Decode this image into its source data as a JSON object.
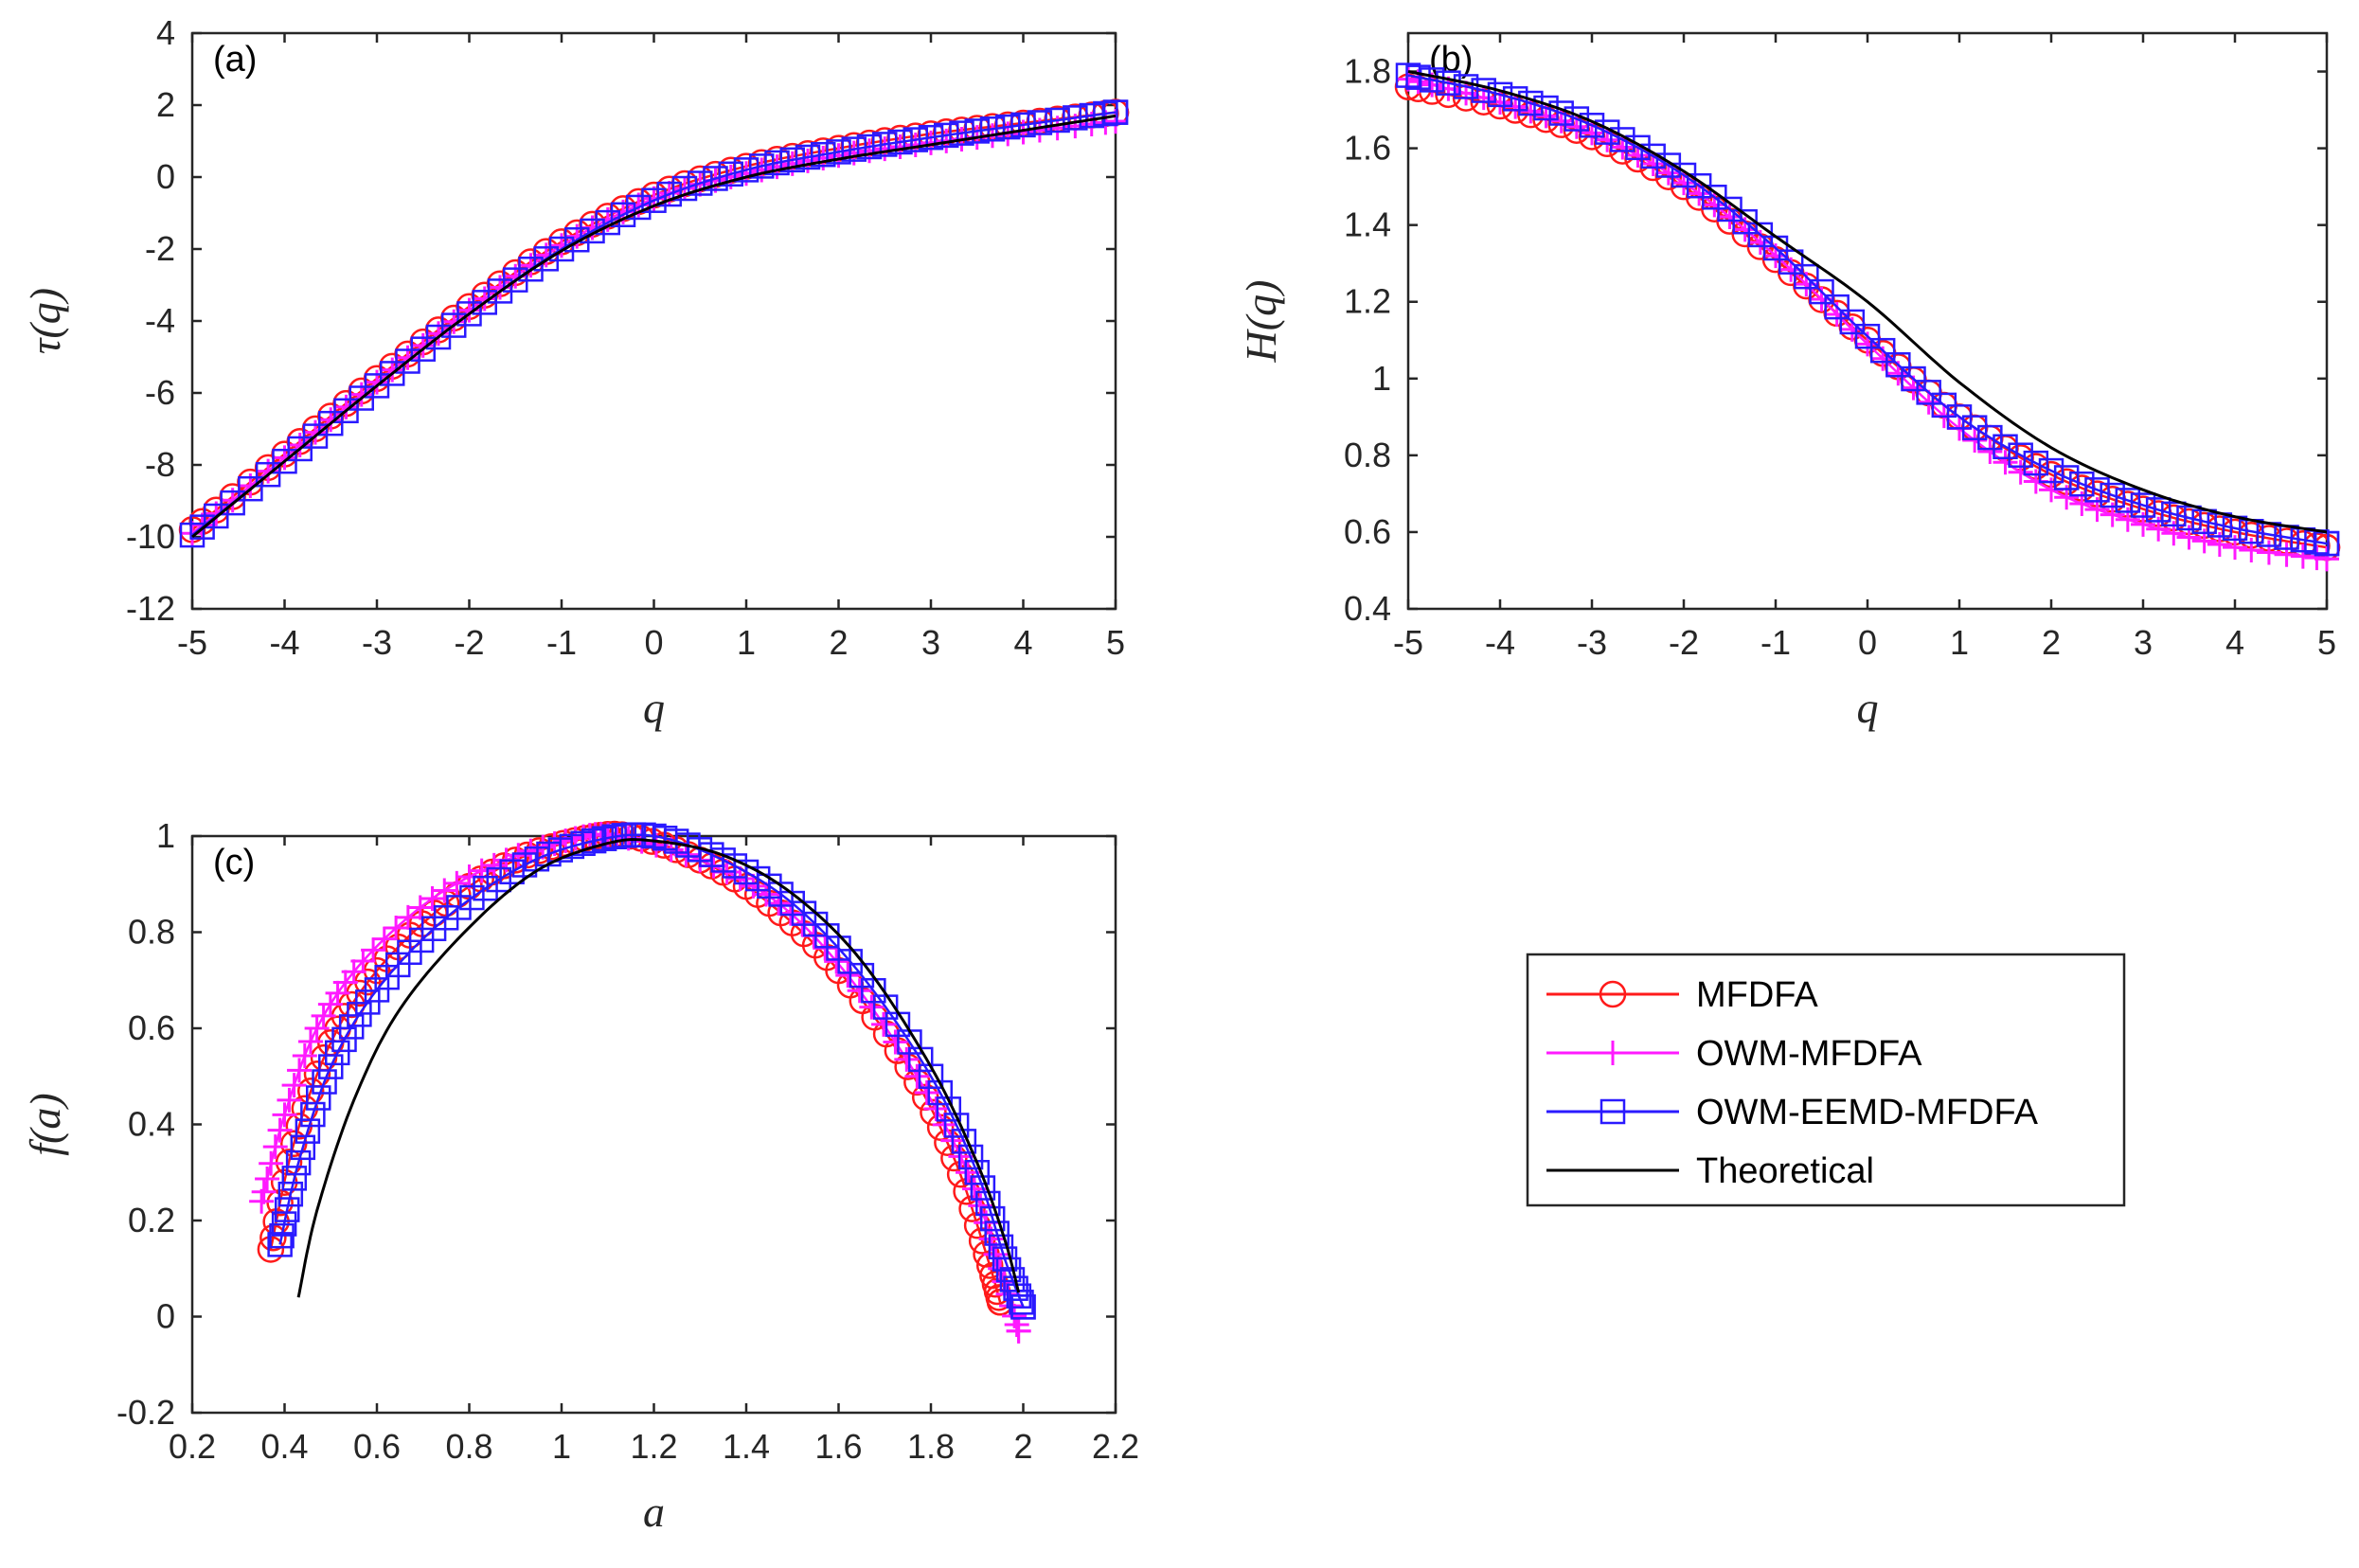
{
  "chart_data": [
    {
      "type": "line",
      "panel_label": "(a)",
      "xlabel": "q",
      "ylabel": "τ(q)",
      "xlim": [
        -5,
        5
      ],
      "ylim": [
        -12,
        4
      ],
      "xticks": [
        -5,
        -4,
        -3,
        -2,
        -1,
        0,
        1,
        2,
        3,
        4,
        5
      ],
      "yticks": [
        -12,
        -10,
        -8,
        -6,
        -4,
        -2,
        0,
        2,
        4
      ],
      "xtick_labels": [
        "-5",
        "-4",
        "-3",
        "-2",
        "-1",
        "0",
        "1",
        "2",
        "3",
        "4",
        "5"
      ],
      "ytick_labels": [
        "-12",
        "-10",
        "-8",
        "-6",
        "-4",
        "-2",
        "0",
        "2",
        "4"
      ],
      "series": [
        {
          "name": "MFDFA",
          "x": [
            -5,
            -4,
            -3,
            -2,
            -1,
            0,
            1,
            2,
            3,
            4,
            5
          ],
          "y": [
            -9.8,
            -7.7,
            -5.6,
            -3.6,
            -1.8,
            -0.5,
            0.3,
            0.8,
            1.2,
            1.5,
            1.8
          ]
        },
        {
          "name": "OWM-MFDFA",
          "x": [
            -5,
            -4,
            -3,
            -2,
            -1,
            0,
            1,
            2,
            3,
            4,
            5
          ],
          "y": [
            -9.9,
            -7.8,
            -5.7,
            -3.7,
            -1.9,
            -0.6,
            0.1,
            0.6,
            0.95,
            1.25,
            1.55
          ]
        },
        {
          "name": "OWM-EEMD-MFDFA",
          "x": [
            -5,
            -4,
            -3,
            -2,
            -1,
            0,
            1,
            2,
            3,
            4,
            5
          ],
          "y": [
            -9.95,
            -7.9,
            -5.8,
            -3.8,
            -2.0,
            -0.65,
            0.2,
            0.7,
            1.1,
            1.45,
            1.8
          ]
        },
        {
          "name": "Theoretical",
          "x": [
            -5,
            -4,
            -3,
            -2,
            -1,
            0,
            1,
            2,
            3,
            4,
            5
          ],
          "y": [
            -10.0,
            -7.9,
            -5.8,
            -3.8,
            -2.05,
            -0.8,
            0.0,
            0.5,
            0.9,
            1.3,
            1.7
          ]
        }
      ]
    },
    {
      "type": "line",
      "panel_label": "(b)",
      "xlabel": "q",
      "ylabel": "H(q)",
      "xlim": [
        -5,
        5
      ],
      "ylim": [
        0.4,
        1.9
      ],
      "xticks": [
        -5,
        -4,
        -3,
        -2,
        -1,
        0,
        1,
        2,
        3,
        4,
        5
      ],
      "yticks": [
        0.4,
        0.6,
        0.8,
        1.0,
        1.2,
        1.4,
        1.6,
        1.8
      ],
      "xtick_labels": [
        "-5",
        "-4",
        "-3",
        "-2",
        "-1",
        "0",
        "1",
        "2",
        "3",
        "4",
        "5"
      ],
      "ytick_labels": [
        "0.4",
        "0.6",
        "0.8",
        "1",
        "1.2",
        "1.4",
        "1.6",
        "1.8"
      ],
      "series": [
        {
          "name": "MFDFA",
          "x": [
            -5,
            -4,
            -3,
            -2,
            -1,
            0,
            1,
            2,
            3,
            4,
            5
          ],
          "y": [
            1.76,
            1.71,
            1.63,
            1.5,
            1.31,
            1.1,
            0.9,
            0.75,
            0.66,
            0.6,
            0.56
          ]
        },
        {
          "name": "OWM-MFDFA",
          "x": [
            -5,
            -4,
            -3,
            -2,
            -1,
            0,
            1,
            2,
            3,
            4,
            5
          ],
          "y": [
            1.78,
            1.72,
            1.64,
            1.51,
            1.32,
            1.09,
            0.87,
            0.71,
            0.62,
            0.56,
            0.53
          ]
        },
        {
          "name": "OWM-EEMD-MFDFA",
          "x": [
            -5,
            -4,
            -3,
            -2,
            -1,
            0,
            1,
            2,
            3,
            4,
            5
          ],
          "y": [
            1.79,
            1.74,
            1.66,
            1.53,
            1.34,
            1.11,
            0.9,
            0.76,
            0.67,
            0.61,
            0.57
          ]
        },
        {
          "name": "Theoretical",
          "x": [
            -5,
            -4,
            -3,
            -2,
            -1,
            0,
            1,
            2,
            3,
            4,
            5
          ],
          "y": [
            1.8,
            1.75,
            1.67,
            1.54,
            1.37,
            1.2,
            0.99,
            0.82,
            0.71,
            0.64,
            0.6
          ]
        }
      ]
    },
    {
      "type": "line",
      "panel_label": "(c)",
      "xlabel": "a",
      "ylabel": "f(a)",
      "xlim": [
        0.2,
        2.2
      ],
      "ylim": [
        -0.2,
        1.0
      ],
      "xticks": [
        0.2,
        0.4,
        0.6,
        0.8,
        1.0,
        1.2,
        1.4,
        1.6,
        1.8,
        2.0,
        2.2
      ],
      "yticks": [
        -0.2,
        0,
        0.2,
        0.4,
        0.6,
        0.8,
        1.0
      ],
      "xtick_labels": [
        "0.2",
        "0.4",
        "0.6",
        "0.8",
        "1",
        "1.2",
        "1.4",
        "1.6",
        "1.8",
        "2",
        "2.2"
      ],
      "ytick_labels": [
        "-0.2",
        "0",
        "0.2",
        "0.4",
        "0.6",
        "0.8",
        "1"
      ],
      "series": [
        {
          "name": "MFDFA",
          "x": [
            0.37,
            0.42,
            0.5,
            0.6,
            0.75,
            0.9,
            1.05,
            1.15,
            1.3,
            1.45,
            1.6,
            1.75,
            1.85,
            1.92,
            1.95
          ],
          "y": [
            0.14,
            0.36,
            0.57,
            0.72,
            0.86,
            0.95,
            0.995,
            1.0,
            0.95,
            0.86,
            0.72,
            0.52,
            0.33,
            0.13,
            0.03
          ]
        },
        {
          "name": "OWM-MFDFA",
          "x": [
            0.35,
            0.4,
            0.47,
            0.57,
            0.72,
            0.88,
            1.03,
            1.12,
            1.3,
            1.47,
            1.62,
            1.77,
            1.88,
            1.95,
            1.99
          ],
          "y": [
            0.24,
            0.42,
            0.6,
            0.74,
            0.87,
            0.95,
            0.995,
            1.0,
            0.95,
            0.86,
            0.71,
            0.5,
            0.3,
            0.1,
            -0.03
          ]
        },
        {
          "name": "OWM-EEMD-MFDFA",
          "x": [
            0.39,
            0.43,
            0.5,
            0.6,
            0.75,
            0.92,
            1.07,
            1.2,
            1.35,
            1.5,
            1.65,
            1.8,
            1.9,
            1.96,
            2.0
          ],
          "y": [
            0.15,
            0.32,
            0.52,
            0.68,
            0.83,
            0.94,
            0.99,
            1.0,
            0.95,
            0.86,
            0.71,
            0.5,
            0.3,
            0.12,
            0.02
          ]
        },
        {
          "name": "Theoretical",
          "x": [
            0.43,
            0.47,
            0.55,
            0.65,
            0.8,
            0.95,
            1.1,
            1.2,
            1.35,
            1.5,
            1.65,
            1.8,
            1.9,
            1.96,
            1.99
          ],
          "y": [
            0.04,
            0.22,
            0.45,
            0.64,
            0.81,
            0.93,
            0.985,
            0.99,
            0.96,
            0.88,
            0.74,
            0.52,
            0.32,
            0.16,
            0.05
          ]
        }
      ]
    }
  ],
  "legend": {
    "placement": "bottom-right",
    "entries": [
      "MFDFA",
      "OWM-MFDFA",
      "OWM-EEMD-MFDFA",
      "Theoretical"
    ]
  },
  "colors": {
    "MFDFA": "#ff1a1a",
    "OWM-MFDFA": "#ff1aff",
    "OWM-EEMD-MFDFA": "#2a1aff",
    "Theoretical": "#000000"
  }
}
